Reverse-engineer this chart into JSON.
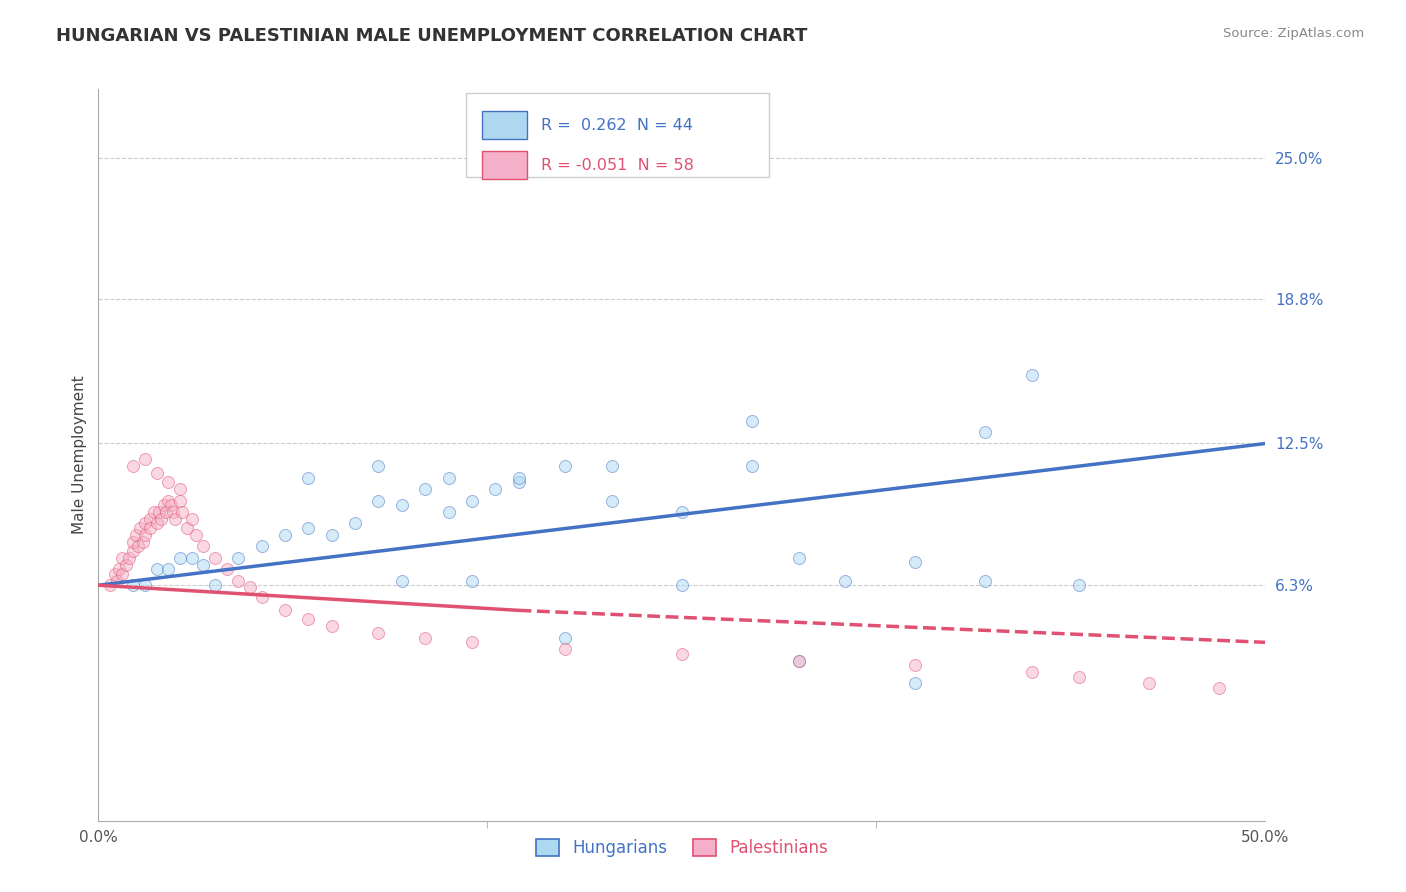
{
  "title": "HUNGARIAN VS PALESTINIAN MALE UNEMPLOYMENT CORRELATION CHART",
  "source": "Source: ZipAtlas.com",
  "ylabel": "Male Unemployment",
  "xlim": [
    0.0,
    0.5
  ],
  "ylim": [
    -0.04,
    0.28
  ],
  "ytick_labels": [
    "25.0%",
    "18.8%",
    "12.5%",
    "6.3%"
  ],
  "ytick_values": [
    0.25,
    0.188,
    0.125,
    0.063
  ],
  "legend_labels": [
    "Hungarians",
    "Palestinians"
  ],
  "hungarian_color": "#add8f0",
  "hungarian_line_color": "#4472c4",
  "palestinian_color": "#f4b0c8",
  "palestinian_line_color": "#e05070",
  "background_color": "#ffffff",
  "title_color": "#333333",
  "source_color": "#888888",
  "hungarian_x": [
    0.015,
    0.02,
    0.025,
    0.03,
    0.035,
    0.04,
    0.045,
    0.05,
    0.06,
    0.07,
    0.08,
    0.09,
    0.1,
    0.11,
    0.12,
    0.13,
    0.14,
    0.15,
    0.16,
    0.17,
    0.18,
    0.2,
    0.22,
    0.25,
    0.28,
    0.3,
    0.32,
    0.35,
    0.38,
    0.4,
    0.13,
    0.16,
    0.2,
    0.25,
    0.3,
    0.35,
    0.09,
    0.12,
    0.15,
    0.18,
    0.22,
    0.28,
    0.38,
    0.42
  ],
  "hungarian_y": [
    0.063,
    0.063,
    0.07,
    0.07,
    0.075,
    0.075,
    0.072,
    0.063,
    0.075,
    0.08,
    0.085,
    0.088,
    0.085,
    0.09,
    0.1,
    0.098,
    0.105,
    0.11,
    0.1,
    0.105,
    0.108,
    0.115,
    0.1,
    0.095,
    0.115,
    0.075,
    0.065,
    0.073,
    0.13,
    0.155,
    0.065,
    0.065,
    0.04,
    0.063,
    0.03,
    0.02,
    0.11,
    0.115,
    0.095,
    0.11,
    0.115,
    0.135,
    0.065,
    0.063
  ],
  "palestinian_x": [
    0.005,
    0.007,
    0.008,
    0.009,
    0.01,
    0.01,
    0.012,
    0.013,
    0.015,
    0.015,
    0.016,
    0.017,
    0.018,
    0.019,
    0.02,
    0.02,
    0.022,
    0.022,
    0.024,
    0.025,
    0.026,
    0.027,
    0.028,
    0.029,
    0.03,
    0.031,
    0.032,
    0.033,
    0.035,
    0.036,
    0.038,
    0.04,
    0.042,
    0.045,
    0.05,
    0.055,
    0.06,
    0.065,
    0.07,
    0.08,
    0.09,
    0.1,
    0.12,
    0.14,
    0.16,
    0.2,
    0.25,
    0.3,
    0.35,
    0.4,
    0.42,
    0.45,
    0.48,
    0.015,
    0.02,
    0.025,
    0.03,
    0.035
  ],
  "palestinian_y": [
    0.063,
    0.068,
    0.065,
    0.07,
    0.068,
    0.075,
    0.072,
    0.075,
    0.078,
    0.082,
    0.085,
    0.08,
    0.088,
    0.082,
    0.085,
    0.09,
    0.092,
    0.088,
    0.095,
    0.09,
    0.095,
    0.092,
    0.098,
    0.095,
    0.1,
    0.098,
    0.095,
    0.092,
    0.1,
    0.095,
    0.088,
    0.092,
    0.085,
    0.08,
    0.075,
    0.07,
    0.065,
    0.062,
    0.058,
    0.052,
    0.048,
    0.045,
    0.042,
    0.04,
    0.038,
    0.035,
    0.033,
    0.03,
    0.028,
    0.025,
    0.023,
    0.02,
    0.018,
    0.115,
    0.118,
    0.112,
    0.108,
    0.105
  ],
  "hungarian_R": 0.262,
  "hungarian_N": 44,
  "palestinian_R": -0.051,
  "palestinian_N": 58,
  "marker_size": 75,
  "marker_alpha": 0.5,
  "line_width": 2.5
}
